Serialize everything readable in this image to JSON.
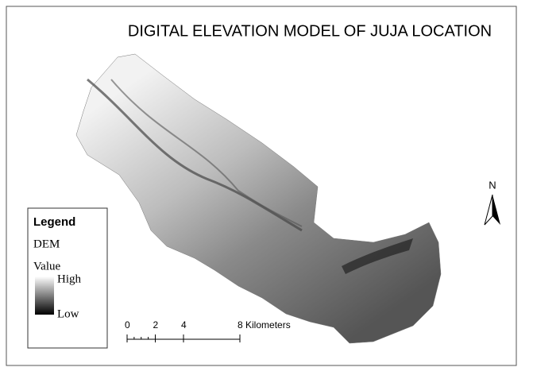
{
  "title": "DIGITAL ELEVATION MODEL OF JUJA LOCATION",
  "legend": {
    "title": "Legend",
    "layer": "DEM",
    "field": "Value",
    "high": "High",
    "low": "Low"
  },
  "north_arrow": "N",
  "scale_bar": {
    "ticks": [
      {
        "value": 0,
        "label": "0"
      },
      {
        "value": 2,
        "label": "2"
      },
      {
        "value": 4,
        "label": "4"
      },
      {
        "value": 8,
        "label": "8 Kilometers"
      }
    ]
  }
}
